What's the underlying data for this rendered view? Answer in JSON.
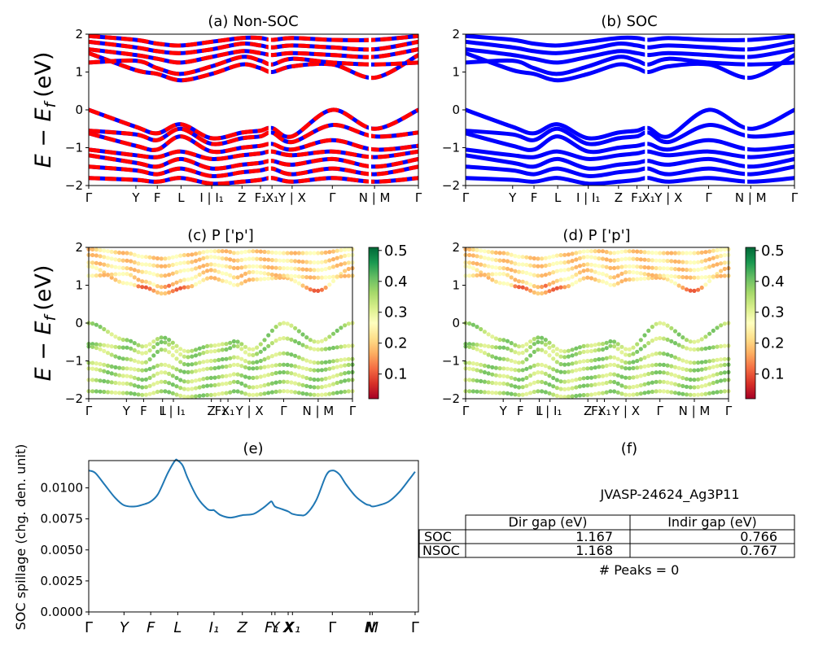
{
  "figure": {
    "panels": {
      "a": {
        "title": "(a) Non-SOC"
      },
      "b": {
        "title": "(b) SOC"
      },
      "c": {
        "title": "(c)  P ['p']"
      },
      "d": {
        "title": "(d) P ['p']"
      },
      "e": {
        "title": "(e)"
      },
      "f": {
        "title": "(f)"
      }
    },
    "ylabel_band": "E − E_f (eV)",
    "ylabel_band_main": "E − E",
    "ylabel_band_sub": "f",
    "ylabel_band_unit": "(eV)",
    "ylabel_spillage": "SOC spillage (chg. den. unit)",
    "colorbar_ticks": [
      "0.1",
      "0.2",
      "0.3",
      "0.4",
      "0.5"
    ],
    "colors": {
      "nonsoc_up": "#0000ff",
      "nonsoc_dn": "#ff0000",
      "soc": "#0000ff",
      "spillage": "#1f77b4"
    }
  },
  "chart_data": [
    {
      "panel": "a",
      "type": "line",
      "title": "(a) Non-SOC",
      "ylim": [
        -2,
        2
      ],
      "yticks": [
        "−2",
        "−1",
        "0",
        "1",
        "2"
      ],
      "xtick_labels": [
        "Γ",
        "Y",
        "F",
        "L",
        "I | I₁",
        "Z",
        "F₁",
        "X₁",
        "Y | X",
        "Γ",
        "N | M",
        "Γ"
      ],
      "k_positions": [
        0,
        0.143,
        0.208,
        0.28,
        0.373,
        0.465,
        0.521,
        0.556,
        0.617,
        0.739,
        0.867,
        1.0
      ],
      "segment_breaks": [
        0.549,
        0.853
      ],
      "valence_bands": [
        {
          "name": "VB1",
          "values": [
            0.0,
            -0.45,
            -0.62,
            -0.38,
            -0.75,
            -0.6,
            -0.55,
            -0.48,
            -0.7,
            0.0,
            -0.5,
            0.0
          ]
        },
        {
          "name": "VB2",
          "values": [
            -0.55,
            -0.65,
            -0.8,
            -0.5,
            -0.9,
            -0.75,
            -0.7,
            -0.6,
            -0.85,
            -0.4,
            -0.7,
            -0.6
          ]
        },
        {
          "name": "VB3",
          "values": [
            -0.62,
            -0.95,
            -1.05,
            -0.7,
            -1.1,
            -1.0,
            -0.95,
            -0.9,
            -1.05,
            -0.8,
            -1.05,
            -0.95
          ]
        },
        {
          "name": "VB4",
          "values": [
            -1.05,
            -1.2,
            -1.25,
            -1.1,
            -1.3,
            -1.2,
            -1.15,
            -1.1,
            -1.2,
            -1.1,
            -1.25,
            -1.1
          ]
        },
        {
          "name": "VB5",
          "values": [
            -1.2,
            -1.4,
            -1.5,
            -1.3,
            -1.55,
            -1.45,
            -1.4,
            -1.35,
            -1.45,
            -1.3,
            -1.5,
            -1.3
          ]
        },
        {
          "name": "VB6",
          "values": [
            -1.5,
            -1.6,
            -1.7,
            -1.55,
            -1.75,
            -1.65,
            -1.6,
            -1.55,
            -1.7,
            -1.55,
            -1.7,
            -1.5
          ]
        },
        {
          "name": "VB7",
          "values": [
            -1.8,
            -1.85,
            -1.9,
            -1.8,
            -1.95,
            -1.9,
            -1.85,
            -1.8,
            -1.9,
            -1.8,
            -1.9,
            -1.8
          ]
        }
      ],
      "conduction_bands": [
        {
          "name": "CB1",
          "values": [
            1.5,
            1.05,
            0.95,
            0.78,
            0.95,
            1.2,
            1.1,
            1.0,
            1.15,
            1.2,
            0.85,
            1.45
          ]
        },
        {
          "name": "CB2",
          "values": [
            1.25,
            1.3,
            1.1,
            0.95,
            1.15,
            1.4,
            1.3,
            1.2,
            1.35,
            1.25,
            1.2,
            1.25
          ]
        },
        {
          "name": "CB3",
          "values": [
            1.6,
            1.45,
            1.35,
            1.25,
            1.4,
            1.55,
            1.5,
            1.45,
            1.5,
            1.45,
            1.4,
            1.6
          ]
        },
        {
          "name": "CB4",
          "values": [
            1.8,
            1.65,
            1.55,
            1.5,
            1.6,
            1.75,
            1.7,
            1.65,
            1.7,
            1.65,
            1.6,
            1.8
          ]
        },
        {
          "name": "CB5",
          "values": [
            1.95,
            1.85,
            1.75,
            1.7,
            1.8,
            1.9,
            1.9,
            1.85,
            1.9,
            1.85,
            1.85,
            1.95
          ]
        }
      ]
    },
    {
      "panel": "b",
      "type": "line",
      "title": "(b) SOC",
      "ylim": [
        -2,
        2
      ],
      "yticks": [
        "−2",
        "−1",
        "0",
        "1",
        "2"
      ],
      "xtick_labels": [
        "Γ",
        "Y",
        "F",
        "L",
        "I | I₁",
        "Z",
        "F₁",
        "X₁",
        "Y | X",
        "Γ",
        "N | M",
        "Γ"
      ],
      "k_positions": [
        0,
        0.143,
        0.208,
        0.28,
        0.373,
        0.465,
        0.521,
        0.556,
        0.617,
        0.739,
        0.867,
        1.0
      ],
      "note": "same band set as panel (a), spin-orbit coupled"
    },
    {
      "panel": "c",
      "type": "scatter",
      "title": "(c)  P ['p']",
      "ylim": [
        -2,
        2
      ],
      "yticks": [
        "−2",
        "−1",
        "0",
        "1",
        "2"
      ],
      "xtick_labels": [
        "Γ",
        "Y",
        "F",
        "L",
        "I | I₁",
        "Z",
        "F₁",
        "X₁",
        "Y | X",
        "Γ",
        "N | M",
        "Γ"
      ],
      "k_positions": [
        0,
        0.143,
        0.208,
        0.28,
        0.321,
        0.465,
        0.5,
        0.528,
        0.61,
        0.739,
        0.87,
        1.0
      ],
      "colorbar": {
        "range": [
          0.02,
          0.51
        ],
        "ticks": [
          0.1,
          0.2,
          0.3,
          0.4,
          0.5
        ],
        "cmap": "RdYlGn"
      },
      "weight_conduction": 0.22,
      "weight_valence": 0.35
    },
    {
      "panel": "d",
      "type": "scatter",
      "title": "(d) P ['p']",
      "ylim": [
        -2,
        2
      ],
      "yticks": [
        "−2",
        "−1",
        "0",
        "1",
        "2"
      ],
      "xtick_labels": [
        "Γ",
        "Y",
        "F",
        "L",
        "I | I₁",
        "Z",
        "F₁",
        "X₁",
        "Y | X",
        "Γ",
        "N | M",
        "Γ"
      ],
      "k_positions": [
        0,
        0.143,
        0.208,
        0.28,
        0.321,
        0.465,
        0.5,
        0.528,
        0.61,
        0.739,
        0.87,
        1.0
      ],
      "colorbar": {
        "range": [
          0.02,
          0.51
        ],
        "ticks": [
          0.1,
          0.2,
          0.3,
          0.4,
          0.5
        ],
        "cmap": "RdYlGn"
      },
      "weight_conduction": 0.22,
      "weight_valence": 0.35
    },
    {
      "panel": "e",
      "type": "line",
      "title": "(e)",
      "ylabel": "SOC spillage (chg. den. unit)",
      "ylim": [
        0.0,
        0.0122
      ],
      "yticks": [
        "0.0000",
        "0.0025",
        "0.0050",
        "0.0075",
        "0.0100"
      ],
      "xtick_labels": [
        "Γ",
        "Y",
        "F",
        "L",
        "I₁",
        "Z",
        "F₁",
        "Y",
        "X",
        "X₁",
        "Γ",
        "N",
        "M",
        "Γ"
      ],
      "xtick_pos": [
        0,
        0.107,
        0.188,
        0.27,
        0.38,
        0.466,
        0.555,
        0.565,
        0.605,
        0.618,
        0.739,
        0.853,
        0.86,
        0.99
      ],
      "series": [
        {
          "name": "spillage",
          "x": [
            0,
            0.02,
            0.05,
            0.08,
            0.107,
            0.14,
            0.17,
            0.188,
            0.21,
            0.24,
            0.262,
            0.27,
            0.285,
            0.3,
            0.33,
            0.36,
            0.375,
            0.38,
            0.4,
            0.43,
            0.466,
            0.5,
            0.53,
            0.548,
            0.555,
            0.565,
            0.585,
            0.605,
            0.618,
            0.64,
            0.66,
            0.69,
            0.72,
            0.739,
            0.76,
            0.78,
            0.81,
            0.84,
            0.853,
            0.86,
            0.88,
            0.91,
            0.94,
            0.97,
            0.99
          ],
          "y": [
            0.0114,
            0.0112,
            0.0102,
            0.0092,
            0.0086,
            0.0085,
            0.0087,
            0.0089,
            0.0095,
            0.0112,
            0.0122,
            0.0122,
            0.0118,
            0.0108,
            0.0092,
            0.0083,
            0.0082,
            0.0082,
            0.0078,
            0.0076,
            0.0078,
            0.0079,
            0.0084,
            0.0088,
            0.0089,
            0.0085,
            0.0083,
            0.0081,
            0.0079,
            0.0078,
            0.0079,
            0.009,
            0.011,
            0.0114,
            0.0111,
            0.0103,
            0.0093,
            0.0087,
            0.0086,
            0.0085,
            0.0086,
            0.0089,
            0.0096,
            0.0106,
            0.0113
          ]
        }
      ]
    },
    {
      "panel": "f",
      "type": "table",
      "title": "(f)",
      "material": "JVASP-24624_Ag3P11",
      "columns": [
        "Dir gap (eV)",
        "Indir gap (eV)"
      ],
      "rows": [
        {
          "label": "SOC",
          "values": [
            "1.167",
            "0.766"
          ]
        },
        {
          "label": "NSOC",
          "values": [
            "1.168",
            "0.767"
          ]
        }
      ],
      "footer": "# Peaks = 0"
    }
  ]
}
